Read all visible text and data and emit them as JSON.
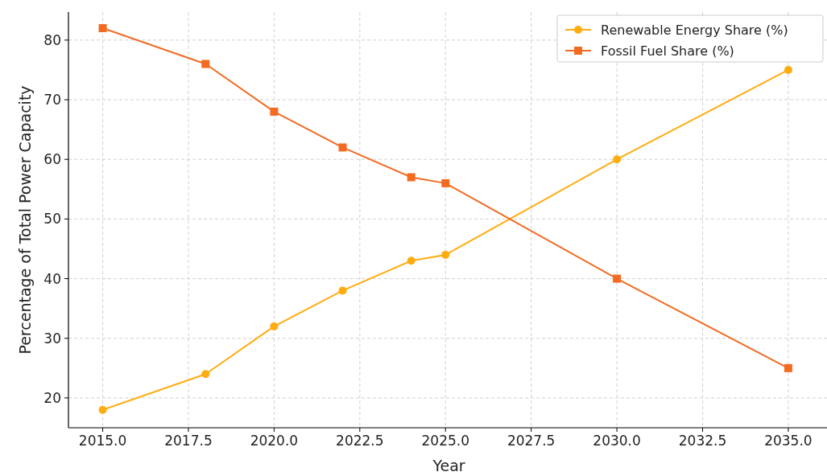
{
  "chart_data": {
    "type": "line",
    "xlabel": "Year",
    "ylabel": "Percentage of Total Power Capacity",
    "x": [
      2015,
      2018,
      2020,
      2022,
      2024,
      2025,
      2030,
      2035
    ],
    "series": [
      {
        "name": "Renewable Energy Share (%)",
        "color": "#ffac10",
        "marker": "circle",
        "values": [
          18,
          24,
          32,
          38,
          43,
          44,
          60,
          75
        ]
      },
      {
        "name": "Fossil Fuel Share (%)",
        "color": "#f26b21",
        "marker": "square",
        "values": [
          82,
          76,
          68,
          62,
          57,
          56,
          40,
          25
        ]
      }
    ],
    "xlim": [
      2014,
      2036.2
    ],
    "ylim": [
      15,
      84.7
    ],
    "xticks": [
      {
        "value": 2015,
        "label": "2015.0"
      },
      {
        "value": 2017.5,
        "label": "2017.5"
      },
      {
        "value": 2020,
        "label": "2020.0"
      },
      {
        "value": 2022.5,
        "label": "2022.5"
      },
      {
        "value": 2025,
        "label": "2025.0"
      },
      {
        "value": 2027.5,
        "label": "2027.5"
      },
      {
        "value": 2030,
        "label": "2030.0"
      },
      {
        "value": 2032.5,
        "label": "2032.5"
      },
      {
        "value": 2035,
        "label": "2035.0"
      }
    ],
    "yticks": [
      20,
      30,
      40,
      50,
      60,
      70,
      80
    ],
    "grid": true,
    "legend": "top right",
    "line_style": "solid"
  }
}
